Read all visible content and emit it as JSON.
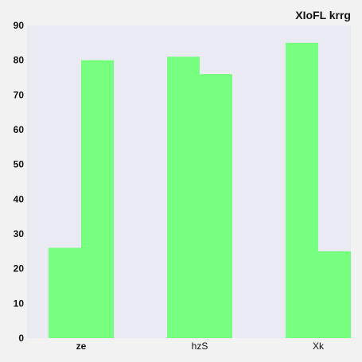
{
  "chart_data": {
    "type": "bar",
    "title": "XIoFL   krrg",
    "categories": [
      "ze",
      "hzS",
      "Xk"
    ],
    "series": [
      {
        "values": [
          26,
          81,
          85
        ]
      },
      {
        "values": [
          80,
          76,
          25
        ]
      }
    ],
    "ylim": [
      0,
      90
    ],
    "yticks": [
      0,
      10,
      20,
      30,
      40,
      50,
      60,
      70,
      80,
      90
    ],
    "grid": false,
    "colors": {
      "bar": "#77ff7f",
      "plot_background": "#eaeaf2",
      "page_background": "#f2f2f2"
    }
  }
}
